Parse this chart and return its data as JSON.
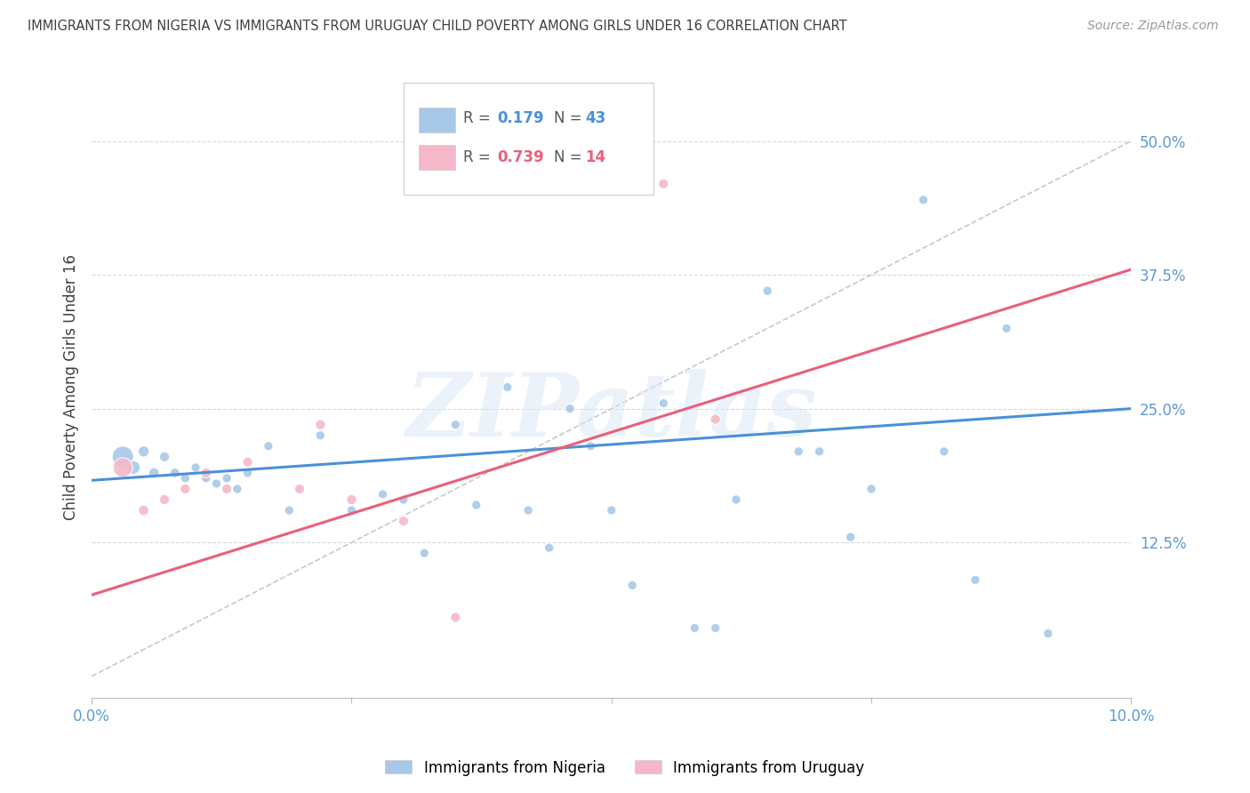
{
  "title": "IMMIGRANTS FROM NIGERIA VS IMMIGRANTS FROM URUGUAY CHILD POVERTY AMONG GIRLS UNDER 16 CORRELATION CHART",
  "source": "Source: ZipAtlas.com",
  "ylabel": "Child Poverty Among Girls Under 16",
  "xlim": [
    0,
    0.1
  ],
  "ylim": [
    -0.02,
    0.56
  ],
  "ytick_values": [
    0.0,
    0.125,
    0.25,
    0.375,
    0.5
  ],
  "ytick_labels": [
    "",
    "12.5%",
    "25.0%",
    "37.5%",
    "50.0%"
  ],
  "xtick_values": [
    0.0,
    0.1
  ],
  "xtick_labels": [
    "0.0%",
    "10.0%"
  ],
  "nigeria_R": 0.179,
  "nigeria_N": 43,
  "uruguay_R": 0.739,
  "uruguay_N": 14,
  "nigeria_color": "#a8c8e8",
  "uruguay_color": "#f5b8c8",
  "nigeria_line_color": "#4a90d9",
  "uruguay_line_color": "#e8607a",
  "diagonal_color": "#c8c8c8",
  "background_color": "#ffffff",
  "grid_color": "#d8d8d8",
  "title_color": "#404040",
  "axis_color": "#5b9bd5",
  "watermark_text": "ZIPatlas",
  "legend_label_nigeria": "Immigrants from Nigeria",
  "legend_label_uruguay": "Immigrants from Uruguay",
  "nigeria_x": [
    0.003,
    0.004,
    0.005,
    0.006,
    0.007,
    0.008,
    0.009,
    0.01,
    0.011,
    0.012,
    0.013,
    0.014,
    0.015,
    0.017,
    0.019,
    0.022,
    0.025,
    0.028,
    0.03,
    0.032,
    0.035,
    0.037,
    0.04,
    0.042,
    0.044,
    0.046,
    0.048,
    0.05,
    0.052,
    0.055,
    0.058,
    0.06,
    0.062,
    0.065,
    0.068,
    0.07,
    0.073,
    0.075,
    0.08,
    0.082,
    0.085,
    0.088,
    0.092
  ],
  "nigeria_y": [
    0.205,
    0.195,
    0.21,
    0.19,
    0.205,
    0.19,
    0.185,
    0.195,
    0.185,
    0.18,
    0.185,
    0.175,
    0.19,
    0.215,
    0.155,
    0.225,
    0.155,
    0.17,
    0.165,
    0.115,
    0.235,
    0.16,
    0.27,
    0.155,
    0.12,
    0.25,
    0.215,
    0.155,
    0.085,
    0.255,
    0.045,
    0.045,
    0.165,
    0.36,
    0.21,
    0.21,
    0.13,
    0.175,
    0.445,
    0.21,
    0.09,
    0.325,
    0.04
  ],
  "nigeria_sizes": [
    300,
    120,
    80,
    70,
    65,
    60,
    55,
    55,
    55,
    55,
    55,
    55,
    55,
    55,
    55,
    55,
    55,
    55,
    55,
    55,
    55,
    55,
    55,
    55,
    55,
    55,
    55,
    55,
    55,
    55,
    55,
    55,
    55,
    55,
    55,
    55,
    55,
    55,
    55,
    55,
    55,
    55,
    55
  ],
  "uruguay_x": [
    0.003,
    0.005,
    0.007,
    0.009,
    0.011,
    0.013,
    0.015,
    0.02,
    0.022,
    0.025,
    0.03,
    0.035,
    0.055,
    0.06
  ],
  "uruguay_y": [
    0.195,
    0.155,
    0.165,
    0.175,
    0.19,
    0.175,
    0.2,
    0.175,
    0.235,
    0.165,
    0.145,
    0.055,
    0.46,
    0.24
  ],
  "uruguay_sizes": [
    250,
    70,
    65,
    65,
    65,
    65,
    65,
    65,
    65,
    65,
    65,
    65,
    65,
    65
  ],
  "nig_line_x": [
    0.0,
    0.1
  ],
  "nig_line_y": [
    0.183,
    0.25
  ],
  "uru_line_x": [
    0.0,
    0.1
  ],
  "uru_line_y": [
    0.076,
    0.38
  ]
}
